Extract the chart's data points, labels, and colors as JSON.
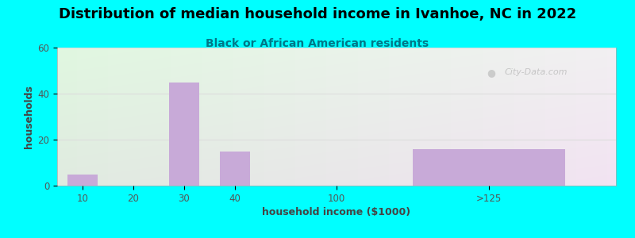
{
  "title": "Distribution of median household income in Ivanhoe, NC in 2022",
  "subtitle": "Black or African American residents",
  "xlabel": "household income ($1000)",
  "ylabel": "households",
  "categories": [
    "10",
    "20",
    "30",
    "40",
    "100",
    ">125"
  ],
  "x_positions": [
    0,
    1,
    2,
    3,
    5,
    8
  ],
  "bar_widths": [
    0.6,
    0.6,
    0.6,
    0.6,
    0.6,
    3.0
  ],
  "values": [
    5,
    0,
    45,
    15,
    0,
    16
  ],
  "bar_color": "#c8aad8",
  "outer_bg": "#00ffff",
  "ylim": [
    0,
    60
  ],
  "yticks": [
    0,
    20,
    40,
    60
  ],
  "xlim": [
    -0.5,
    10.5
  ],
  "xtick_positions": [
    0,
    1,
    2,
    3,
    5,
    8
  ],
  "title_fontsize": 13,
  "subtitle_fontsize": 10,
  "axis_label_fontsize": 9,
  "tick_fontsize": 8.5,
  "watermark": "City-Data.com"
}
